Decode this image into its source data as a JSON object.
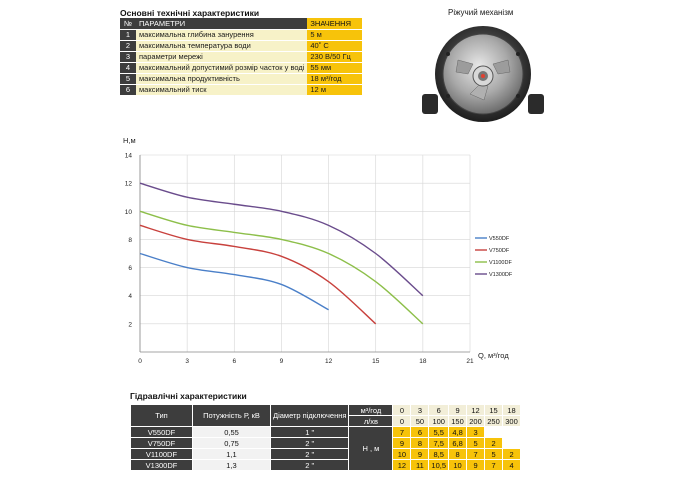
{
  "spec": {
    "title": "Основні технічні характеристики",
    "headers": [
      "№",
      "ПАРАМЕТРИ",
      "ЗНАЧЕННЯ"
    ],
    "rows": [
      {
        "n": "1",
        "param": "максимальна глибина занурення",
        "value": "5 м"
      },
      {
        "n": "2",
        "param": "максимальна температура води",
        "value": "40˚ C"
      },
      {
        "n": "3",
        "param": "параметри мережі",
        "value": "230 В/50 Гц"
      },
      {
        "n": "4",
        "param": "максимальний допустимий розмір часток у воді",
        "value": "55 мм"
      },
      {
        "n": "5",
        "param": "максимальна продуктивність",
        "value": "18 м³/год"
      },
      {
        "n": "6",
        "param": "максимальний тиск",
        "value": "12 м"
      }
    ]
  },
  "mechanism": {
    "title": "Ріжучий механізм"
  },
  "chart_data": {
    "type": "line",
    "ylabel": "Н,м",
    "xlabel": "Q, м³/год",
    "xlim": [
      0,
      21
    ],
    "ylim": [
      0,
      14
    ],
    "x_ticks": [
      "0",
      "3",
      "6",
      "9",
      "12",
      "15",
      "18",
      "21"
    ],
    "y_ticks": [
      "2",
      "4",
      "6",
      "8",
      "10",
      "12",
      "14"
    ],
    "grid": true,
    "legend_position": "right",
    "series": [
      {
        "name": "V550DF",
        "color": "#4a7fc8",
        "x": [
          0,
          3,
          6,
          9,
          12
        ],
        "y": [
          7,
          6,
          5.5,
          4.8,
          3
        ]
      },
      {
        "name": "V750DF",
        "color": "#c8413d",
        "x": [
          0,
          3,
          6,
          9,
          12,
          15
        ],
        "y": [
          9,
          8,
          7.5,
          6.8,
          5,
          2
        ]
      },
      {
        "name": "V1100DF",
        "color": "#8dbf4a",
        "x": [
          0,
          3,
          6,
          9,
          12,
          15,
          18
        ],
        "y": [
          10,
          9,
          8.5,
          8,
          7,
          5,
          2
        ]
      },
      {
        "name": "V1300DF",
        "color": "#6a4c8c",
        "x": [
          0,
          3,
          6,
          9,
          12,
          15,
          18
        ],
        "y": [
          12,
          11,
          10.5,
          10,
          9,
          7,
          4
        ]
      }
    ]
  },
  "hydraulic": {
    "title": "Гідравлічні характеристики",
    "col_type": "Тип",
    "col_power": "Потужність Р, кВ",
    "col_diam": "Діаметр підключення",
    "q_label": "м³/год",
    "l_label": "л/хв",
    "h_label": "Н , м",
    "q_values": [
      "0",
      "3",
      "6",
      "9",
      "12",
      "15",
      "18"
    ],
    "l_values": [
      "0",
      "50",
      "100",
      "150",
      "200",
      "250",
      "300"
    ],
    "rows": [
      {
        "type": "V550DF",
        "power": "0,55",
        "diam": "1 \"",
        "h": [
          "7",
          "6",
          "5,5",
          "4,8",
          "3",
          "",
          ""
        ]
      },
      {
        "type": "V750DF",
        "power": "0,75",
        "diam": "2 \"",
        "h": [
          "9",
          "8",
          "7,5",
          "6,8",
          "5",
          "2",
          ""
        ]
      },
      {
        "type": "V1100DF",
        "power": "1,1",
        "diam": "2 \"",
        "h": [
          "10",
          "9",
          "8,5",
          "8",
          "7",
          "5",
          "2"
        ]
      },
      {
        "type": "V1300DF",
        "power": "1,3",
        "diam": "2 \"",
        "h": [
          "12",
          "11",
          "10,5",
          "10",
          "9",
          "7",
          "4"
        ]
      }
    ]
  }
}
